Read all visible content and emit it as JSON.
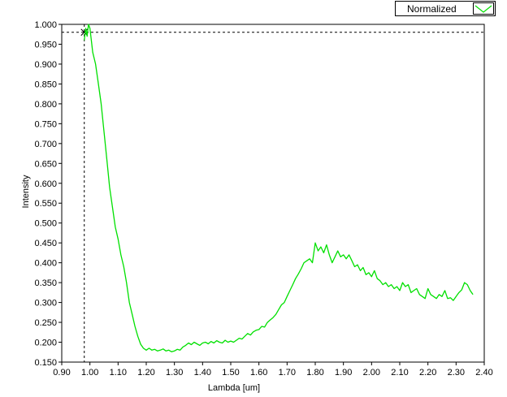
{
  "chart_data": {
    "type": "line",
    "title": "",
    "xlabel": "Lambda [um]",
    "ylabel": "Intensity",
    "xlim": [
      0.9,
      2.4
    ],
    "ylim": [
      0.15,
      1.0
    ],
    "xticks": [
      "0.90",
      "1.00",
      "1.10",
      "1.20",
      "1.30",
      "1.40",
      "1.50",
      "1.60",
      "1.70",
      "1.80",
      "1.90",
      "2.00",
      "2.10",
      "2.20",
      "2.30",
      "2.40"
    ],
    "yticks": [
      "0.150",
      "0.200",
      "0.250",
      "0.300",
      "0.350",
      "0.400",
      "0.450",
      "0.500",
      "0.550",
      "0.600",
      "0.650",
      "0.700",
      "0.750",
      "0.800",
      "0.850",
      "0.900",
      "0.950",
      "1.000"
    ],
    "grid": false,
    "legend_position": "top-right",
    "cursor": {
      "x": 0.98,
      "y": 0.98
    },
    "series": [
      {
        "name": "Normalized",
        "color": "#00e000",
        "x": [
          0.98,
          0.985,
          0.99,
          0.995,
          1.0,
          1.005,
          1.01,
          1.02,
          1.03,
          1.04,
          1.05,
          1.06,
          1.07,
          1.08,
          1.09,
          1.1,
          1.11,
          1.12,
          1.13,
          1.14,
          1.15,
          1.16,
          1.17,
          1.18,
          1.19,
          1.2,
          1.21,
          1.22,
          1.23,
          1.24,
          1.25,
          1.26,
          1.27,
          1.28,
          1.29,
          1.3,
          1.31,
          1.32,
          1.33,
          1.34,
          1.35,
          1.36,
          1.37,
          1.38,
          1.39,
          1.4,
          1.41,
          1.42,
          1.43,
          1.44,
          1.45,
          1.46,
          1.47,
          1.48,
          1.49,
          1.5,
          1.51,
          1.52,
          1.53,
          1.54,
          1.55,
          1.56,
          1.57,
          1.58,
          1.59,
          1.6,
          1.61,
          1.62,
          1.63,
          1.64,
          1.65,
          1.66,
          1.67,
          1.68,
          1.69,
          1.7,
          1.71,
          1.72,
          1.73,
          1.74,
          1.75,
          1.76,
          1.77,
          1.78,
          1.79,
          1.8,
          1.81,
          1.82,
          1.83,
          1.84,
          1.85,
          1.86,
          1.87,
          1.88,
          1.89,
          1.9,
          1.91,
          1.92,
          1.93,
          1.94,
          1.95,
          1.96,
          1.97,
          1.98,
          1.99,
          2.0,
          2.01,
          2.02,
          2.03,
          2.04,
          2.05,
          2.06,
          2.07,
          2.08,
          2.09,
          2.1,
          2.11,
          2.12,
          2.13,
          2.14,
          2.15,
          2.16,
          2.17,
          2.18,
          2.19,
          2.2,
          2.21,
          2.22,
          2.23,
          2.24,
          2.25,
          2.26,
          2.27,
          2.28,
          2.29,
          2.3,
          2.31,
          2.32,
          2.33,
          2.34,
          2.35,
          2.36
        ],
        "y": [
          0.96,
          0.99,
          0.97,
          1.0,
          0.99,
          0.96,
          0.93,
          0.9,
          0.85,
          0.8,
          0.73,
          0.66,
          0.59,
          0.54,
          0.49,
          0.46,
          0.42,
          0.39,
          0.35,
          0.3,
          0.27,
          0.24,
          0.215,
          0.195,
          0.185,
          0.18,
          0.185,
          0.18,
          0.182,
          0.178,
          0.18,
          0.183,
          0.178,
          0.18,
          0.176,
          0.178,
          0.182,
          0.18,
          0.188,
          0.192,
          0.198,
          0.194,
          0.2,
          0.196,
          0.192,
          0.198,
          0.2,
          0.196,
          0.202,
          0.198,
          0.204,
          0.2,
          0.198,
          0.205,
          0.2,
          0.203,
          0.2,
          0.205,
          0.21,
          0.208,
          0.215,
          0.222,
          0.218,
          0.226,
          0.23,
          0.232,
          0.24,
          0.238,
          0.25,
          0.256,
          0.262,
          0.27,
          0.282,
          0.294,
          0.3,
          0.315,
          0.33,
          0.345,
          0.36,
          0.372,
          0.385,
          0.4,
          0.405,
          0.41,
          0.4,
          0.45,
          0.43,
          0.44,
          0.425,
          0.445,
          0.42,
          0.4,
          0.415,
          0.43,
          0.415,
          0.42,
          0.41,
          0.42,
          0.405,
          0.39,
          0.395,
          0.38,
          0.388,
          0.37,
          0.375,
          0.365,
          0.38,
          0.36,
          0.355,
          0.345,
          0.35,
          0.34,
          0.345,
          0.335,
          0.34,
          0.33,
          0.35,
          0.34,
          0.345,
          0.325,
          0.33,
          0.335,
          0.32,
          0.315,
          0.31,
          0.335,
          0.32,
          0.315,
          0.31,
          0.32,
          0.315,
          0.33,
          0.31,
          0.312,
          0.305,
          0.315,
          0.325,
          0.332,
          0.35,
          0.345,
          0.33,
          0.32
        ]
      }
    ]
  }
}
